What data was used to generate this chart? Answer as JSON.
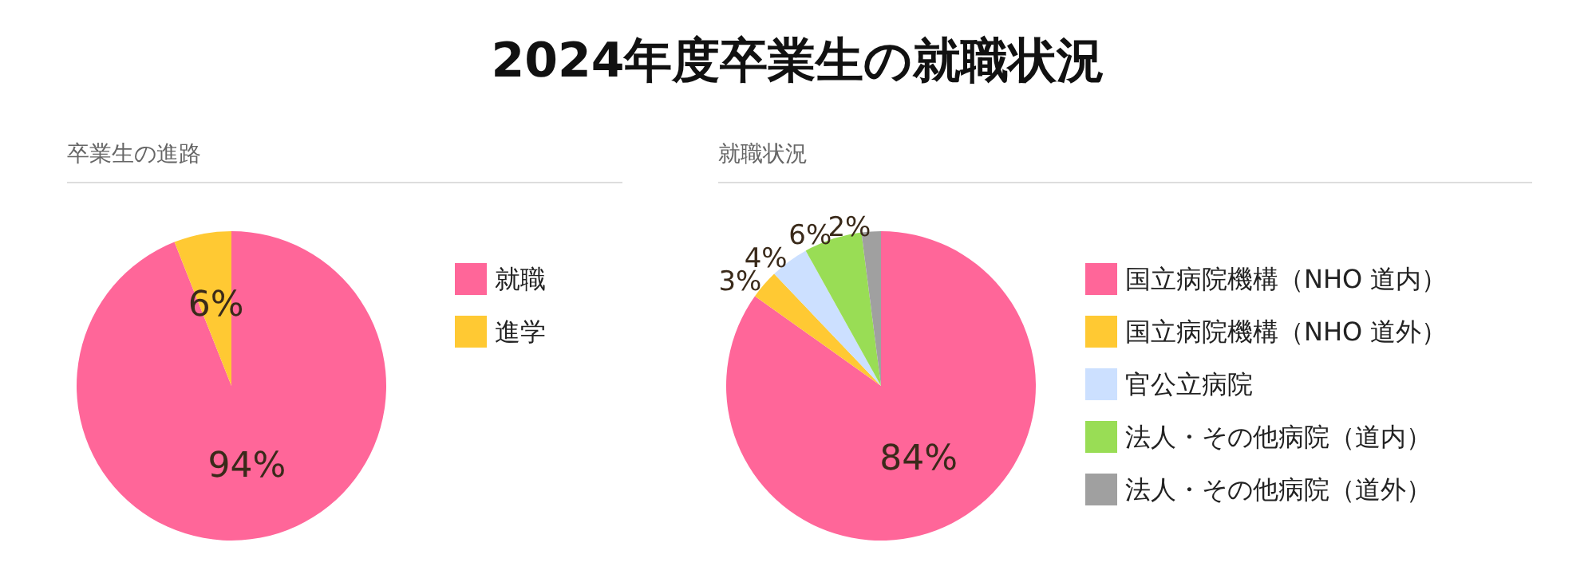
{
  "chart_data": [
    {
      "type": "pie",
      "subtitle": "卒業生の進路",
      "categories": [
        "就職",
        "進学"
      ],
      "values": [
        94,
        6
      ],
      "colors": [
        "#ff6699",
        "#ffc933"
      ],
      "value_labels": [
        "94%",
        "6%"
      ],
      "legend": "right"
    },
    {
      "type": "pie",
      "title": "2024年度卒業生の就職状況",
      "subtitle": "就職状況",
      "categories": [
        "国立病院機構（NHO 道内）",
        "国立病院機構（NHO 道外）",
        "官公立病院",
        "法人・その他病院（道内）",
        "法人・その他病院（道外）"
      ],
      "values": [
        84,
        3,
        4,
        6,
        2
      ],
      "colors": [
        "#ff6699",
        "#ffc933",
        "#cce0ff",
        "#99dd55",
        "#a0a0a0"
      ],
      "value_labels": [
        "84%",
        "3%",
        "4%",
        "6%",
        "2%"
      ],
      "legend": "right"
    }
  ]
}
